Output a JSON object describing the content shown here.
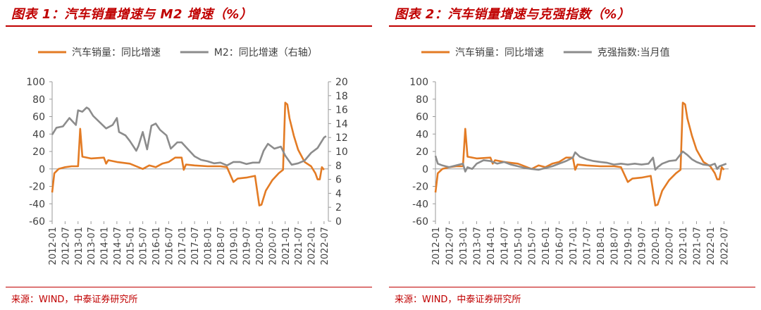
{
  "chart_data": [
    {
      "type": "line",
      "title": "图表 1：汽车销量增速与 M2 增速（%）",
      "source": "来源：WIND，中泰证券研究所",
      "x_ticks": [
        "2012-01",
        "2012-07",
        "2013-01",
        "2013-07",
        "2014-01",
        "2014-07",
        "2015-01",
        "2015-07",
        "2016-01",
        "2016-07",
        "2017-01",
        "2017-07",
        "2018-01",
        "2018-07",
        "2019-01",
        "2019-07",
        "2020-01",
        "2020-07",
        "2021-01",
        "2021-07",
        "2022-01",
        "2022-07"
      ],
      "x_range": [
        "2012-01",
        "2022-09"
      ],
      "ylim": [
        -60,
        100
      ],
      "yticks": [
        "-60",
        "-40",
        "-20",
        "0",
        "20",
        "40",
        "60",
        "80",
        "100"
      ],
      "y2lim": [
        0,
        20
      ],
      "y2ticks": [
        "0",
        "2",
        "4",
        "6",
        "8",
        "10",
        "12",
        "14",
        "16",
        "18",
        "20"
      ],
      "legend_position": "top",
      "grid": false,
      "series": [
        {
          "name": "汽车销量：同比增速",
          "axis": "left",
          "color": "#e37b24",
          "points": [
            [
              "2012-01",
              -27
            ],
            [
              "2012-02",
              -5
            ],
            [
              "2012-04",
              0
            ],
            [
              "2012-07",
              2
            ],
            [
              "2012-10",
              3
            ],
            [
              "2013-01",
              3
            ],
            [
              "2013-02",
              46
            ],
            [
              "2013-03",
              14
            ],
            [
              "2013-07",
              12
            ],
            [
              "2014-01",
              13
            ],
            [
              "2014-02",
              6
            ],
            [
              "2014-03",
              10
            ],
            [
              "2014-07",
              8
            ],
            [
              "2015-01",
              6
            ],
            [
              "2015-07",
              0
            ],
            [
              "2015-10",
              4
            ],
            [
              "2016-01",
              2
            ],
            [
              "2016-04",
              6
            ],
            [
              "2016-07",
              8
            ],
            [
              "2016-10",
              13
            ],
            [
              "2017-01",
              13
            ],
            [
              "2017-02",
              -1
            ],
            [
              "2017-03",
              5
            ],
            [
              "2017-07",
              4
            ],
            [
              "2018-01",
              3
            ],
            [
              "2018-07",
              3
            ],
            [
              "2018-10",
              2
            ],
            [
              "2019-01",
              -15
            ],
            [
              "2019-03",
              -11
            ],
            [
              "2019-07",
              -10
            ],
            [
              "2019-11",
              -8
            ],
            [
              "2020-01",
              -42
            ],
            [
              "2020-02",
              -41
            ],
            [
              "2020-04",
              -25
            ],
            [
              "2020-07",
              -13
            ],
            [
              "2020-10",
              -5
            ],
            [
              "2020-12",
              -1
            ],
            [
              "2021-01",
              76
            ],
            [
              "2021-02",
              74
            ],
            [
              "2021-03",
              58
            ],
            [
              "2021-05",
              38
            ],
            [
              "2021-07",
              22
            ],
            [
              "2021-10",
              8
            ],
            [
              "2022-01",
              3
            ],
            [
              "2022-03",
              -5
            ],
            [
              "2022-04",
              -12
            ],
            [
              "2022-05",
              -12
            ],
            [
              "2022-06",
              2
            ],
            [
              "2022-07",
              -1
            ]
          ]
        },
        {
          "name": "M2：同比增速（右轴）",
          "axis": "right",
          "color": "#8c8c8c",
          "points": [
            [
              "2012-01",
              12.4
            ],
            [
              "2012-03",
              13.4
            ],
            [
              "2012-06",
              13.6
            ],
            [
              "2012-09",
              14.8
            ],
            [
              "2012-12",
              13.8
            ],
            [
              "2013-01",
              15.9
            ],
            [
              "2013-03",
              15.7
            ],
            [
              "2013-05",
              16.3
            ],
            [
              "2013-06",
              16.1
            ],
            [
              "2013-08",
              15.1
            ],
            [
              "2013-11",
              14.2
            ],
            [
              "2014-02",
              13.3
            ],
            [
              "2014-05",
              13.8
            ],
            [
              "2014-07",
              14.8
            ],
            [
              "2014-08",
              12.8
            ],
            [
              "2014-11",
              12.3
            ],
            [
              "2015-01",
              11.5
            ],
            [
              "2015-04",
              10.1
            ],
            [
              "2015-05",
              10.8
            ],
            [
              "2015-07",
              12.8
            ],
            [
              "2015-09",
              10.3
            ],
            [
              "2015-11",
              13.7
            ],
            [
              "2016-01",
              14.0
            ],
            [
              "2016-03",
              13.1
            ],
            [
              "2016-06",
              12.3
            ],
            [
              "2016-08",
              10.4
            ],
            [
              "2016-11",
              11.3
            ],
            [
              "2017-01",
              11.3
            ],
            [
              "2017-04",
              10.3
            ],
            [
              "2017-07",
              9.3
            ],
            [
              "2017-10",
              8.8
            ],
            [
              "2018-01",
              8.6
            ],
            [
              "2018-04",
              8.3
            ],
            [
              "2018-07",
              8.4
            ],
            [
              "2018-10",
              8.0
            ],
            [
              "2019-01",
              8.5
            ],
            [
              "2019-04",
              8.5
            ],
            [
              "2019-07",
              8.2
            ],
            [
              "2019-10",
              8.4
            ],
            [
              "2020-01",
              8.4
            ],
            [
              "2020-03",
              10.1
            ],
            [
              "2020-05",
              11.1
            ],
            [
              "2020-08",
              10.4
            ],
            [
              "2020-11",
              10.7
            ],
            [
              "2021-01",
              9.4
            ],
            [
              "2021-04",
              8.1
            ],
            [
              "2021-07",
              8.3
            ],
            [
              "2021-10",
              8.7
            ],
            [
              "2022-01",
              9.8
            ],
            [
              "2022-04",
              10.5
            ],
            [
              "2022-07",
              12.0
            ],
            [
              "2022-08",
              12.2
            ]
          ]
        }
      ],
      "label_left_series": "汽车销量：同比增速",
      "label_right_series_prefix": "M2：同比增速（右轴）"
    },
    {
      "type": "line",
      "title": "图表 2：汽车销量增速与克强指数（%）",
      "source": "来源：WIND，中泰证券研究所",
      "x_ticks": [
        "2012-01",
        "2012-07",
        "2013-01",
        "2013-07",
        "2014-01",
        "2014-07",
        "2015-01",
        "2015-07",
        "2016-01",
        "2016-07",
        "2017-01",
        "2017-07",
        "2018-01",
        "2018-07",
        "2019-01",
        "2019-07",
        "2020-01",
        "2020-07",
        "2021-01",
        "2021-07",
        "2022-01",
        "2022-07"
      ],
      "x_range": [
        "2012-01",
        "2022-09"
      ],
      "ylim": [
        -60,
        100
      ],
      "yticks": [
        "-60",
        "-40",
        "-20",
        "0",
        "20",
        "40",
        "60",
        "80",
        "100"
      ],
      "legend_position": "top",
      "grid": false,
      "series": [
        {
          "name": "汽车销量：同比增速",
          "axis": "left",
          "color": "#e37b24",
          "points": [
            [
              "2012-01",
              -27
            ],
            [
              "2012-02",
              -5
            ],
            [
              "2012-04",
              0
            ],
            [
              "2012-07",
              2
            ],
            [
              "2012-10",
              3
            ],
            [
              "2013-01",
              3
            ],
            [
              "2013-02",
              46
            ],
            [
              "2013-03",
              14
            ],
            [
              "2013-07",
              12
            ],
            [
              "2014-01",
              13
            ],
            [
              "2014-02",
              6
            ],
            [
              "2014-03",
              10
            ],
            [
              "2014-07",
              8
            ],
            [
              "2015-01",
              6
            ],
            [
              "2015-07",
              0
            ],
            [
              "2015-10",
              4
            ],
            [
              "2016-01",
              2
            ],
            [
              "2016-04",
              6
            ],
            [
              "2016-07",
              8
            ],
            [
              "2016-10",
              13
            ],
            [
              "2017-01",
              13
            ],
            [
              "2017-02",
              -1
            ],
            [
              "2017-03",
              5
            ],
            [
              "2017-07",
              4
            ],
            [
              "2018-01",
              3
            ],
            [
              "2018-07",
              3
            ],
            [
              "2018-10",
              2
            ],
            [
              "2019-01",
              -15
            ],
            [
              "2019-03",
              -11
            ],
            [
              "2019-07",
              -10
            ],
            [
              "2019-11",
              -8
            ],
            [
              "2020-01",
              -42
            ],
            [
              "2020-02",
              -41
            ],
            [
              "2020-04",
              -25
            ],
            [
              "2020-07",
              -13
            ],
            [
              "2020-10",
              -5
            ],
            [
              "2020-12",
              -1
            ],
            [
              "2021-01",
              76
            ],
            [
              "2021-02",
              74
            ],
            [
              "2021-03",
              58
            ],
            [
              "2021-05",
              38
            ],
            [
              "2021-07",
              22
            ],
            [
              "2021-10",
              8
            ],
            [
              "2022-01",
              3
            ],
            [
              "2022-03",
              -5
            ],
            [
              "2022-04",
              -12
            ],
            [
              "2022-05",
              -12
            ],
            [
              "2022-06",
              2
            ],
            [
              "2022-07",
              -1
            ]
          ]
        },
        {
          "name": "克强指数:当月值",
          "axis": "left",
          "color": "#8c8c8c",
          "points": [
            [
              "2012-01",
              15
            ],
            [
              "2012-02",
              6
            ],
            [
              "2012-04",
              4
            ],
            [
              "2012-07",
              2
            ],
            [
              "2012-10",
              4
            ],
            [
              "2013-01",
              6
            ],
            [
              "2013-02",
              -3
            ],
            [
              "2013-03",
              2
            ],
            [
              "2013-05",
              0
            ],
            [
              "2013-07",
              6
            ],
            [
              "2013-10",
              10
            ],
            [
              "2014-01",
              9
            ],
            [
              "2014-04",
              6
            ],
            [
              "2014-07",
              8
            ],
            [
              "2014-10",
              5
            ],
            [
              "2015-01",
              3
            ],
            [
              "2015-04",
              1
            ],
            [
              "2015-07",
              0
            ],
            [
              "2015-10",
              -1
            ],
            [
              "2016-01",
              1
            ],
            [
              "2016-04",
              3
            ],
            [
              "2016-07",
              6
            ],
            [
              "2016-10",
              9
            ],
            [
              "2017-01",
              13
            ],
            [
              "2017-02",
              19
            ],
            [
              "2017-04",
              14
            ],
            [
              "2017-07",
              11
            ],
            [
              "2017-10",
              9
            ],
            [
              "2018-01",
              8
            ],
            [
              "2018-04",
              7
            ],
            [
              "2018-07",
              5
            ],
            [
              "2018-10",
              6
            ],
            [
              "2019-01",
              5
            ],
            [
              "2019-04",
              6
            ],
            [
              "2019-07",
              5
            ],
            [
              "2019-10",
              6
            ],
            [
              "2019-12",
              13
            ],
            [
              "2020-01",
              -1
            ],
            [
              "2020-02",
              2
            ],
            [
              "2020-04",
              6
            ],
            [
              "2020-07",
              9
            ],
            [
              "2020-10",
              10
            ],
            [
              "2021-01",
              20
            ],
            [
              "2021-03",
              16
            ],
            [
              "2021-05",
              11
            ],
            [
              "2021-07",
              8
            ],
            [
              "2021-10",
              5
            ],
            [
              "2022-01",
              4
            ],
            [
              "2022-03",
              6
            ],
            [
              "2022-04",
              0
            ],
            [
              "2022-05",
              3
            ],
            [
              "2022-07",
              5
            ],
            [
              "2022-08",
              6
            ]
          ]
        }
      ]
    }
  ]
}
